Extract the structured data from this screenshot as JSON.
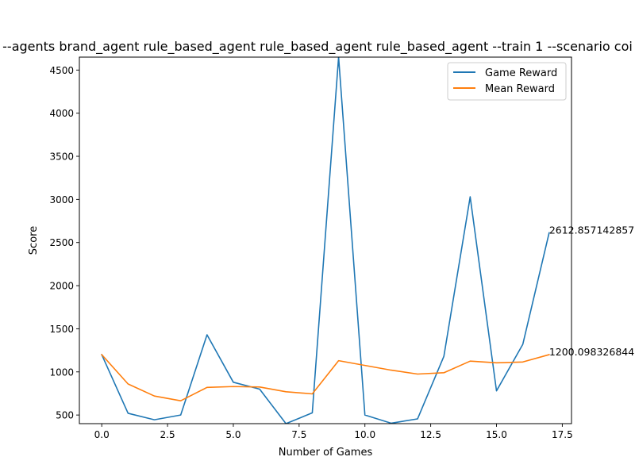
{
  "chart_data": {
    "type": "line",
    "title": "--agents brand_agent rule_based_agent rule_based_agent rule_based_agent --train 1 --scenario coi",
    "xlabel": "Number of Games",
    "ylabel": "Score",
    "xlim": [
      -0.85,
      17.85
    ],
    "ylim": [
      400,
      4650
    ],
    "xticks": [
      0.0,
      2.5,
      5.0,
      7.5,
      10.0,
      12.5,
      15.0,
      17.5
    ],
    "xtick_labels": [
      "0.0",
      "2.5",
      "5.0",
      "7.5",
      "10.0",
      "12.5",
      "15.0",
      "17.5"
    ],
    "yticks": [
      500,
      1000,
      1500,
      2000,
      2500,
      3000,
      3500,
      4000,
      4500
    ],
    "ytick_labels": [
      "500",
      "1000",
      "1500",
      "2000",
      "2500",
      "3000",
      "3500",
      "4000",
      "4500"
    ],
    "grid": false,
    "legend_position": "top-right",
    "x": [
      0,
      1,
      2,
      3,
      4,
      5,
      6,
      7,
      8,
      9,
      10,
      11,
      12,
      13,
      14,
      15,
      16,
      17
    ],
    "series": [
      {
        "name": "Game Reward",
        "color": "#1f77b4",
        "values": [
          1200,
          520,
          445,
          500,
          1430,
          880,
          800,
          400,
          525,
          4650,
          500,
          405,
          455,
          1180,
          3030,
          780,
          1320,
          2612.86
        ]
      },
      {
        "name": "Mean Reward",
        "color": "#ff7f0e",
        "values": [
          1200,
          860,
          720,
          665,
          820,
          830,
          825,
          770,
          745,
          1130,
          1075,
          1020,
          975,
          990,
          1125,
          1105,
          1115,
          1200.1
        ]
      }
    ],
    "annotations": [
      {
        "text": "2612.857142857",
        "x": 17,
        "y": 2612.86
      },
      {
        "text": "1200.098326844",
        "x": 17,
        "y": 1200.1
      }
    ]
  }
}
